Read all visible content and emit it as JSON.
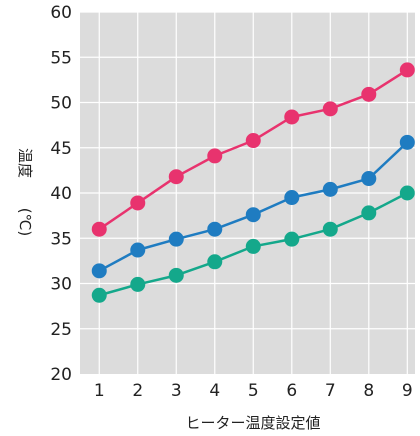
{
  "chart_data": {
    "type": "line",
    "title": "",
    "xlabel": "ヒーター温度設定値",
    "ylabel": "温度",
    "yunit": "(℃)",
    "x": [
      1,
      2,
      3,
      4,
      5,
      6,
      7,
      8,
      9
    ],
    "xticks": [
      "1",
      "2",
      "3",
      "4",
      "5",
      "6",
      "7",
      "8",
      "9"
    ],
    "yticks": [
      "20",
      "25",
      "30",
      "35",
      "40",
      "45",
      "50",
      "55",
      "60"
    ],
    "ylim": [
      20,
      60
    ],
    "xlim": [
      0.5,
      9.2
    ],
    "grid": true,
    "series": [
      {
        "color": "#e8336e",
        "values": [
          36,
          38.9,
          41.8,
          44.1,
          45.8,
          48.4,
          49.3,
          50.9,
          53.6
        ]
      },
      {
        "color": "#1f7cc1",
        "values": [
          31.4,
          33.7,
          34.9,
          36,
          37.6,
          39.5,
          40.4,
          41.6,
          45.6
        ]
      },
      {
        "color": "#14a88b",
        "values": [
          28.7,
          29.9,
          30.9,
          32.4,
          34.1,
          34.9,
          36,
          37.8,
          40
        ]
      }
    ]
  }
}
